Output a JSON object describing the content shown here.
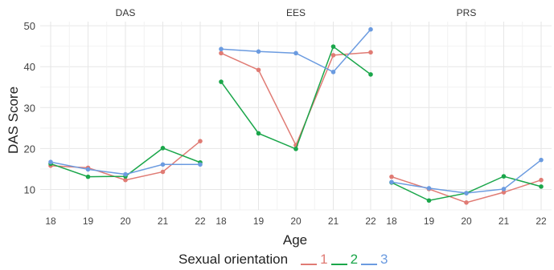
{
  "chart_data": {
    "type": "line",
    "ylabel": "DAS Score",
    "xlabel": "Age",
    "x": [
      18,
      19,
      20,
      21,
      22
    ],
    "yticks": [
      10,
      20,
      30,
      40,
      50
    ],
    "ylim": [
      5,
      51
    ],
    "grid": true,
    "legend": {
      "title": "Sexual orientation",
      "placement": "bottom",
      "entries": [
        {
          "label": "1",
          "color": "#e07b74"
        },
        {
          "label": "2",
          "color": "#1aa64a"
        },
        {
          "label": "3",
          "color": "#6b9be0"
        }
      ]
    },
    "panels": [
      {
        "title": "DAS",
        "series": [
          {
            "name": "1",
            "values": [
              15.8,
              15.3,
              12.3,
              14.3,
              21.8
            ]
          },
          {
            "name": "2",
            "values": [
              16.3,
              13.1,
              13.2,
              20.1,
              16.6
            ]
          },
          {
            "name": "3",
            "values": [
              16.7,
              14.9,
              13.7,
              16.1,
              16.1
            ]
          }
        ]
      },
      {
        "title": "EES",
        "series": [
          {
            "name": "1",
            "values": [
              43.3,
              39.2,
              20.8,
              42.8,
              43.5
            ]
          },
          {
            "name": "2",
            "values": [
              36.3,
              23.7,
              19.9,
              44.9,
              38.1
            ]
          },
          {
            "name": "3",
            "values": [
              44.3,
              43.7,
              43.3,
              38.7,
              49.1
            ]
          }
        ]
      },
      {
        "title": "PRS",
        "series": [
          {
            "name": "1",
            "values": [
              13.1,
              10.1,
              6.8,
              9.3,
              12.3
            ]
          },
          {
            "name": "2",
            "values": [
              11.7,
              7.3,
              9.1,
              13.2,
              10.7
            ]
          },
          {
            "name": "3",
            "values": [
              11.8,
              10.3,
              9.1,
              10.1,
              17.2
            ]
          }
        ]
      }
    ]
  }
}
